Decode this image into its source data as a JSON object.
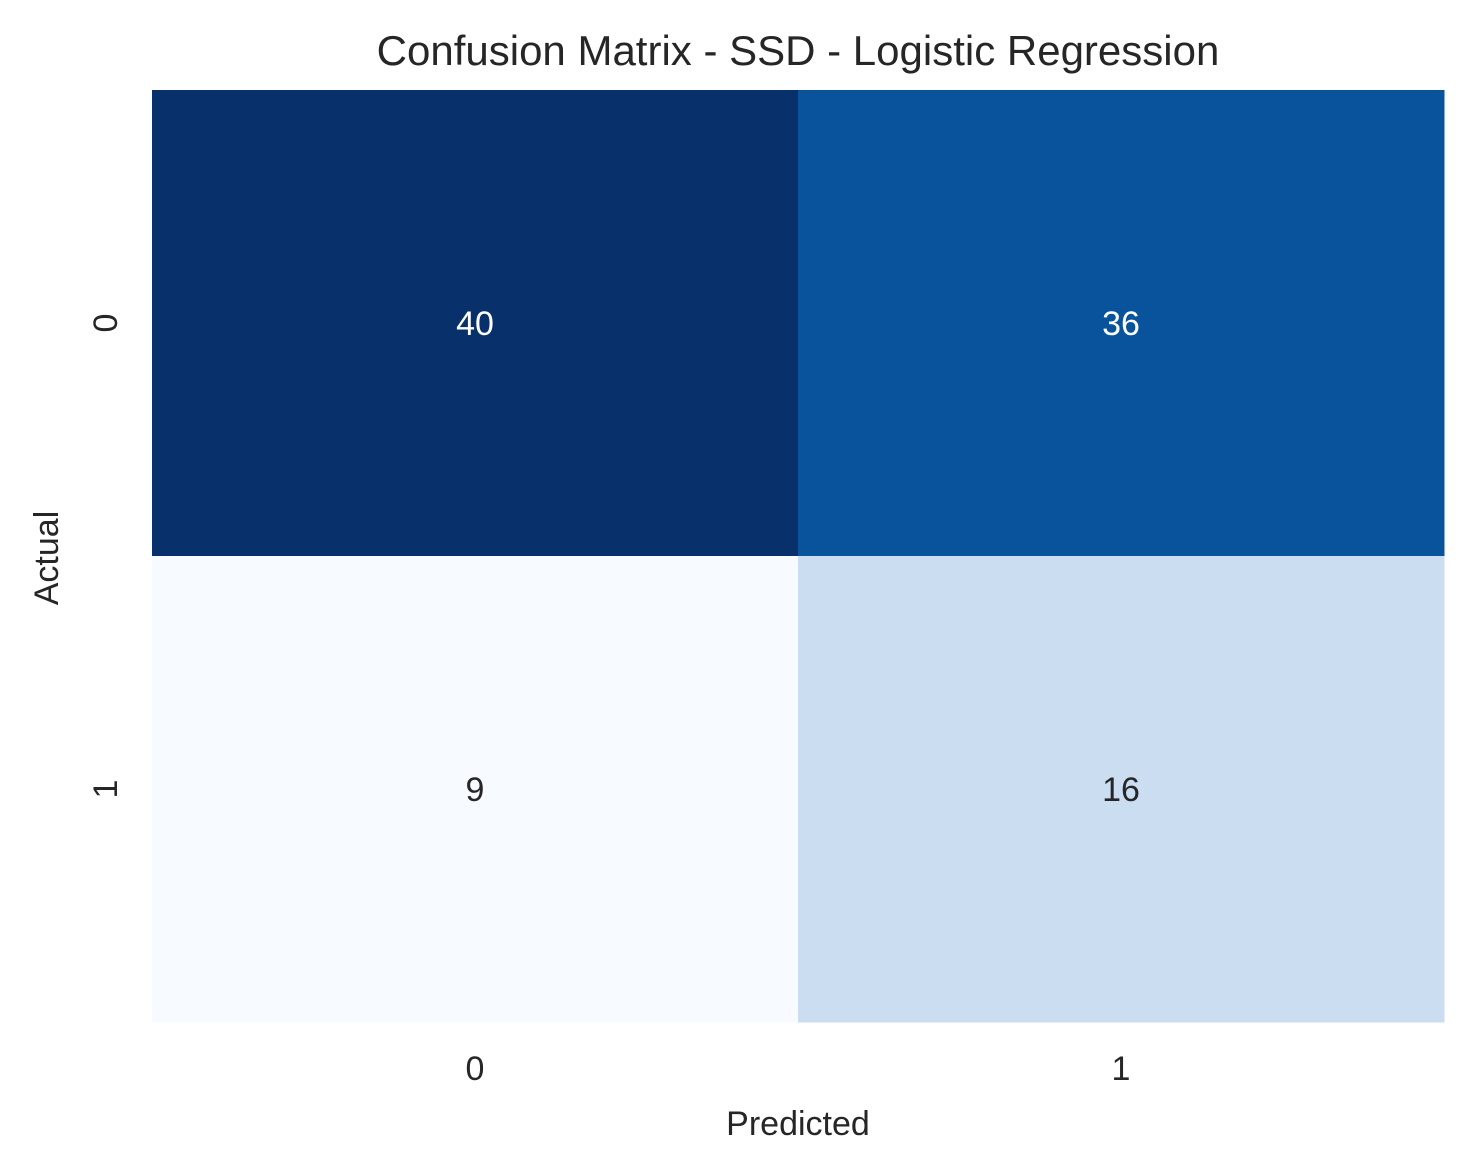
{
  "chart_data": {
    "type": "heatmap",
    "title": "Confusion Matrix - SSD - Logistic Regression",
    "xlabel": "Predicted",
    "ylabel": "Actual",
    "x_categories": [
      "0",
      "1"
    ],
    "y_categories": [
      "0",
      "1"
    ],
    "values": [
      [
        40,
        36
      ],
      [
        9,
        16
      ]
    ],
    "colormap": "Blues",
    "colorbar": false,
    "cell_colors": [
      [
        "#08306b",
        "#09539d"
      ],
      [
        "#f7fbff",
        "#cbddf1"
      ]
    ],
    "cell_text_colors": [
      [
        "#ffffff",
        "#ffffff"
      ],
      [
        "#262626",
        "#262626"
      ]
    ]
  }
}
